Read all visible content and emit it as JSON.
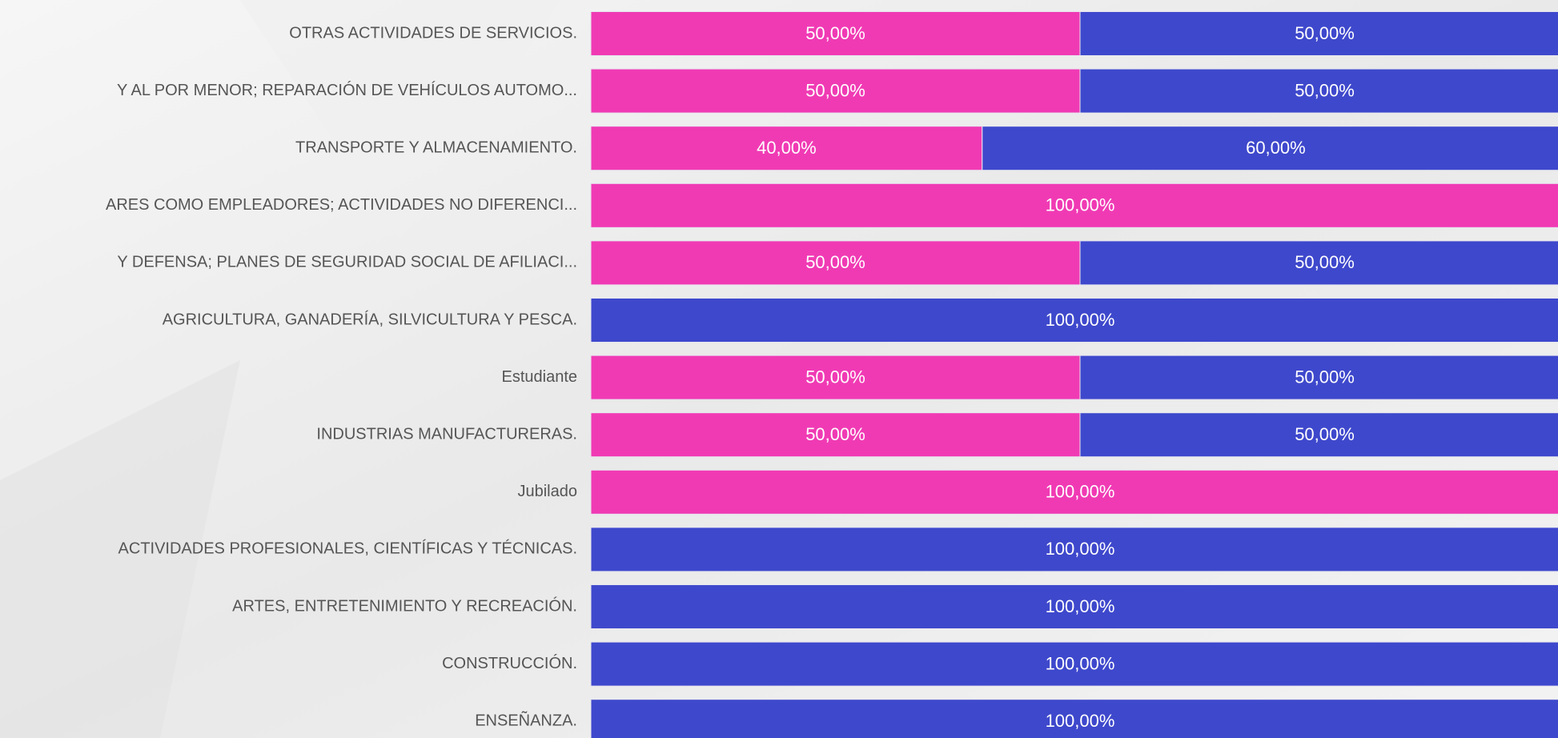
{
  "chart_data": {
    "type": "stacked-bar-horizontal",
    "categories": [
      "OTRAS ACTIVIDADES DE SERVICIOS.",
      "Y AL POR MENOR; REPARACIÓN DE VEHÍCULOS AUTOMO...",
      "TRANSPORTE Y ALMACENAMIENTO.",
      "ARES COMO EMPLEADORES; ACTIVIDADES NO DIFERENCI...",
      "Y DEFENSA; PLANES DE SEGURIDAD SOCIAL DE AFILIACI...",
      "AGRICULTURA, GANADERÍA, SILVICULTURA Y PESCA.",
      "Estudiante",
      "INDUSTRIAS MANUFACTURERAS.",
      "Jubilado",
      "ACTIVIDADES PROFESIONALES, CIENTÍFICAS Y TÉCNICAS.",
      "ARTES, ENTRETENIMIENTO Y RECREACIÓN.",
      "CONSTRUCCIÓN.",
      "ENSEÑANZA."
    ],
    "series": [
      {
        "color": "#f03ab4",
        "values": [
          50,
          50,
          40,
          100,
          50,
          0,
          50,
          50,
          100,
          0,
          0,
          0,
          0
        ],
        "value_labels": [
          "50,00%",
          "50,00%",
          "40,00%",
          "100,00%",
          "50,00%",
          null,
          "50,00%",
          "50,00%",
          "100,00%",
          null,
          null,
          null,
          null
        ]
      },
      {
        "color": "#3e48cc",
        "values": [
          50,
          50,
          60,
          0,
          50,
          100,
          50,
          50,
          0,
          100,
          100,
          100,
          100
        ],
        "value_labels": [
          "50,00%",
          "50,00%",
          "60,00%",
          null,
          "50,00%",
          "100,00%",
          "50,00%",
          "50,00%",
          null,
          "100,00%",
          "100,00%",
          "100,00%",
          "100,00%"
        ]
      }
    ],
    "xlim": [
      0,
      100
    ]
  }
}
